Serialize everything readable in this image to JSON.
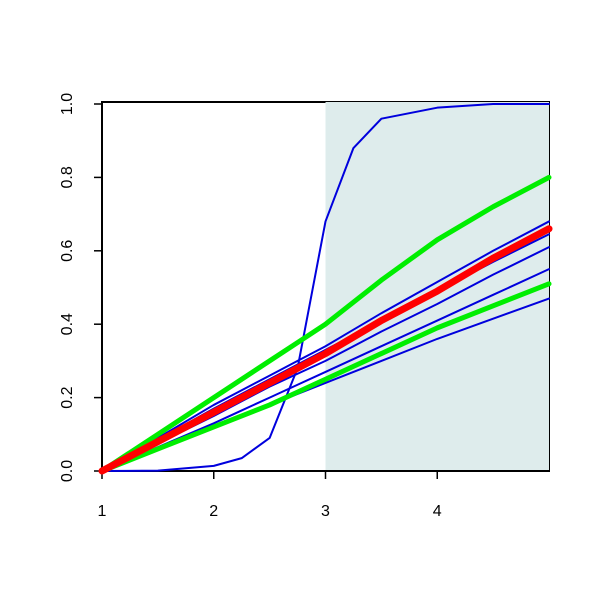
{
  "chart_data": {
    "type": "line",
    "x": [
      1,
      1.5,
      2,
      2.25,
      2.5,
      2.75,
      3,
      3.25,
      3.5,
      4,
      4.5,
      5
    ],
    "series": [
      {
        "color": "#0000dd",
        "width": 2,
        "values": [
          0,
          0.001,
          0.014,
          0.035,
          0.09,
          0.28,
          0.68,
          0.88,
          0.96,
          0.99,
          1.0,
          1.0
        ]
      },
      {
        "color": "#0000dd",
        "width": 2,
        "values": [
          0,
          0.09,
          0.18,
          0.22,
          0.26,
          0.3,
          0.34,
          0.385,
          0.43,
          0.515,
          0.6,
          0.68
        ]
      },
      {
        "color": "#0000dd",
        "width": 2,
        "values": [
          0,
          0.085,
          0.17,
          0.21,
          0.25,
          0.29,
          0.33,
          0.37,
          0.41,
          0.49,
          0.57,
          0.645
        ]
      },
      {
        "color": "#0000dd",
        "width": 2,
        "values": [
          0,
          0.075,
          0.15,
          0.19,
          0.23,
          0.265,
          0.3,
          0.34,
          0.38,
          0.455,
          0.535,
          0.61
        ]
      },
      {
        "color": "#0000dd",
        "width": 2,
        "values": [
          0,
          0.065,
          0.13,
          0.165,
          0.2,
          0.235,
          0.27,
          0.305,
          0.34,
          0.41,
          0.48,
          0.55
        ]
      },
      {
        "color": "#0000dd",
        "width": 2,
        "values": [
          0,
          0.06,
          0.12,
          0.15,
          0.18,
          0.21,
          0.24,
          0.27,
          0.3,
          0.36,
          0.415,
          0.47
        ]
      },
      {
        "color": "#00ee00",
        "width": 5,
        "values": [
          0,
          0.1,
          0.2,
          0.25,
          0.3,
          0.35,
          0.4,
          0.46,
          0.52,
          0.63,
          0.72,
          0.8
        ]
      },
      {
        "color": "#00ee00",
        "width": 5,
        "values": [
          0,
          0.06,
          0.12,
          0.15,
          0.18,
          0.215,
          0.25,
          0.285,
          0.32,
          0.39,
          0.45,
          0.51
        ]
      },
      {
        "color": "#ff0000",
        "width": 7,
        "values": [
          0,
          0.08,
          0.16,
          0.2,
          0.24,
          0.28,
          0.32,
          0.365,
          0.41,
          0.49,
          0.58,
          0.66
        ]
      }
    ],
    "xlim": [
      1,
      5
    ],
    "ylim": [
      0,
      1
    ],
    "xticks": [
      1,
      2,
      3,
      4
    ],
    "yticks": [
      {
        "value": 0,
        "label": "0.0"
      },
      0.2,
      0.4,
      0.6,
      0.8,
      {
        "value": 1,
        "label": "1.0"
      }
    ],
    "highlight": {
      "from": 3,
      "to": 5,
      "color": "#deecec"
    }
  }
}
